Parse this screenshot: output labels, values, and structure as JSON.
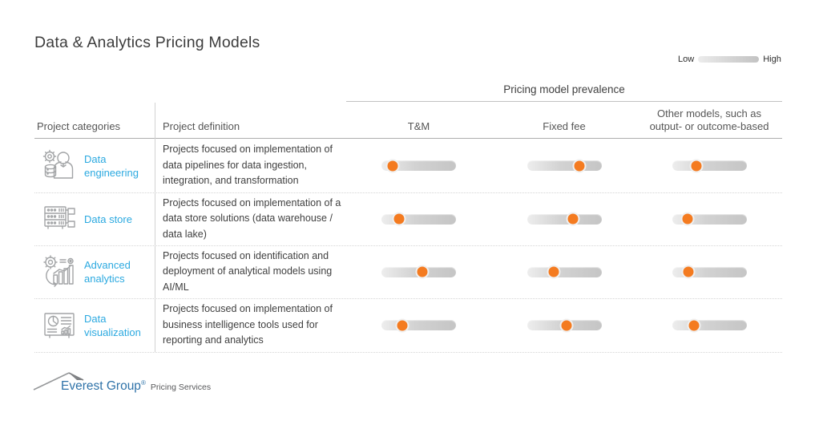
{
  "title": "Data & Analytics Pricing Models",
  "legend": {
    "low": "Low",
    "high": "High"
  },
  "header": {
    "group": "Pricing model prevalence",
    "col_categories": "Project categories",
    "col_definition": "Project definition",
    "col_tm": "T&M",
    "col_ff": "Fixed fee",
    "col_other_line1": "Other models, such as",
    "col_other_line2": "output- or outcome-based"
  },
  "footer": {
    "brand": "Everest Group",
    "registered": "®",
    "tagline": "Pricing Services"
  },
  "colors": {
    "accent_orange": "#F47B20",
    "category_blue": "#2BA9E0",
    "brand_blue": "#2E72A8",
    "track_gray_light": "#EDEDED",
    "track_gray_dark": "#C5C5C5"
  },
  "chart_data": {
    "type": "table",
    "title": "Data & Analytics Pricing Models",
    "group_header": "Pricing model prevalence",
    "scale": {
      "low_label": "Low",
      "high_label": "High",
      "range": [
        0,
        1
      ]
    },
    "columns": [
      "T&M",
      "Fixed fee",
      "Other models, such as output- or outcome-based"
    ],
    "rows": [
      {
        "category": "Data engineering",
        "icon": "data-engineering-icon",
        "definition": "Projects focused on implementation of data pipelines for data ingestion, integration, and transformation",
        "values": [
          0.15,
          0.7,
          0.32
        ]
      },
      {
        "category": "Data store",
        "icon": "data-store-icon",
        "definition": "Projects focused on implementation of a data store solutions (data warehouse / data lake)",
        "values": [
          0.24,
          0.62,
          0.2
        ]
      },
      {
        "category": "Advanced analytics",
        "icon": "advanced-analytics-icon",
        "definition": "Projects focused on identification and deployment of analytical models using AI/ML",
        "values": [
          0.55,
          0.36,
          0.21
        ]
      },
      {
        "category": "Data visualization",
        "icon": "data-visualization-icon",
        "definition": "Projects focused on implementation of business intelligence tools used for reporting and analytics",
        "values": [
          0.28,
          0.53,
          0.29
        ]
      }
    ]
  }
}
